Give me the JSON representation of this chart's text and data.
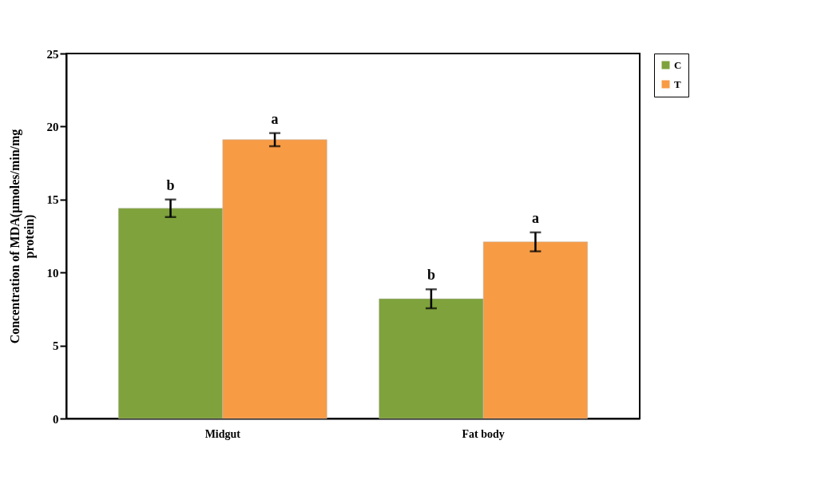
{
  "chart_data": {
    "type": "bar",
    "ylabel": "Concentration of MDA(µmoles/min/mg protein)",
    "categories": [
      "Midgut",
      "Fat body"
    ],
    "series": [
      {
        "name": "C",
        "color": "#7fa23c",
        "values": [
          14.4,
          8.2
        ],
        "errors": [
          0.6,
          0.65
        ]
      },
      {
        "name": "T",
        "color": "#f79b45",
        "values": [
          19.1,
          12.1
        ],
        "errors": [
          0.45,
          0.65
        ]
      }
    ],
    "ylim": [
      0,
      25
    ],
    "yticks": [
      0,
      5,
      10,
      15,
      20,
      25
    ],
    "grid": false,
    "legend": "top right",
    "annotations": [
      "b",
      "a",
      "b",
      "a"
    ]
  }
}
